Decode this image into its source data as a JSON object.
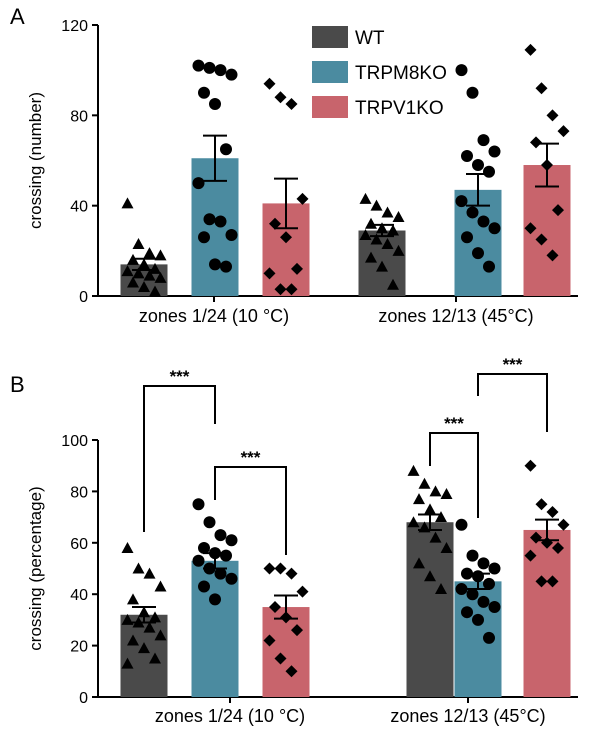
{
  "figure": {
    "panel_a_label": "A",
    "panel_b_label": "B"
  },
  "legend": [
    {
      "name": "WT",
      "color": "#4a4a4a"
    },
    {
      "name": "TRPM8KO",
      "color": "#4b8ba0"
    },
    {
      "name": "TRPV1KO",
      "color": "#c8646c"
    }
  ],
  "chart_data": [
    {
      "type": "bar",
      "panel": "A",
      "ylabel": "crossing (number)",
      "ylim": [
        0,
        120
      ],
      "yticks": [
        0,
        40,
        80,
        120
      ],
      "categories": [
        "zones 1/24 (10 °C)",
        "zones 12/13 (45°C)"
      ],
      "error_bars": "mean ± SEM",
      "series": [
        {
          "name": "WT",
          "color": "#4a4a4a",
          "marker": "triangle",
          "values": [
            14,
            29
          ],
          "sem": [
            2.5,
            2.5
          ],
          "points": [
            [
              41,
              23,
              19,
              18,
              16,
              14,
              12,
              11,
              10,
              9,
              8,
              6,
              4,
              2
            ],
            [
              43,
              40,
              37,
              35,
              32,
              30,
              29,
              27,
              25,
              23,
              20,
              17,
              13,
              5
            ]
          ]
        },
        {
          "name": "TRPM8KO",
          "color": "#4b8ba0",
          "marker": "circle",
          "values": [
            61,
            47
          ],
          "sem": [
            10,
            7
          ],
          "points": [
            [
              102,
              101,
              100,
              98,
              90,
              85,
              65,
              50,
              34,
              33,
              27,
              26,
              14,
              13
            ],
            [
              100,
              90,
              69,
              64,
              62,
              58,
              55,
              42,
              37,
              33,
              30,
              26,
              19,
              13
            ]
          ]
        },
        {
          "name": "TRPV1KO",
          "color": "#c8646c",
          "marker": "diamond",
          "values": [
            41,
            58
          ],
          "sem": [
            11,
            9.5
          ],
          "points": [
            [
              94,
              88,
              85,
              43,
              32,
              26,
              12,
              10,
              3,
              3
            ],
            [
              109,
              92,
              80,
              73,
              68,
              58,
              38,
              30,
              25,
              18
            ]
          ]
        }
      ]
    },
    {
      "type": "bar",
      "panel": "B",
      "ylabel": "crossing (percentage)",
      "ylim": [
        0,
        100
      ],
      "yticks": [
        0,
        20,
        40,
        60,
        80,
        100
      ],
      "categories": [
        "zones 1/24 (10 °C)",
        "zones 12/13 (45°C)"
      ],
      "error_bars": "mean ± SEM",
      "series": [
        {
          "name": "WT",
          "color": "#4a4a4a",
          "marker": "triangle",
          "values": [
            32,
            68
          ],
          "sem": [
            3,
            3
          ],
          "points": [
            [
              58,
              50,
              48,
              43,
              38,
              33,
              31,
              30,
              29,
              27,
              24,
              22,
              19,
              15,
              13
            ],
            [
              88,
              83,
              80,
              79,
              77,
              73,
              70,
              68,
              66,
              62,
              58,
              52,
              47,
              42
            ]
          ]
        },
        {
          "name": "TRPM8KO",
          "color": "#4b8ba0",
          "marker": "circle",
          "values": [
            53,
            45
          ],
          "sem": [
            3,
            3
          ],
          "points": [
            [
              75,
              68,
              63,
              61,
              58,
              56,
              55,
              53,
              50,
              48,
              46,
              43,
              38
            ],
            [
              67,
              55,
              52,
              50,
              48,
              47,
              44,
              42,
              40,
              37,
              35,
              33,
              30,
              23
            ]
          ]
        },
        {
          "name": "TRPV1KO",
          "color": "#c8646c",
          "marker": "diamond",
          "values": [
            35,
            65
          ],
          "sem": [
            4.5,
            4
          ],
          "points": [
            [
              50,
              50,
              48,
              41,
              35,
              31,
              26,
              22,
              15,
              10
            ],
            [
              90,
              75,
              72,
              67,
              62,
              60,
              58,
              55,
              45,
              45
            ]
          ]
        }
      ],
      "significance": [
        {
          "label": "***",
          "category": 0,
          "from": "WT",
          "to": "TRPM8KO",
          "at": 88
        },
        {
          "label": "***",
          "category": 0,
          "from": "TRPM8KO",
          "to": "TRPV1KO",
          "at": 60
        },
        {
          "label": "***",
          "category": 1,
          "from": "WT",
          "to": "TRPM8KO",
          "at": 83
        },
        {
          "label": "***",
          "category": 1,
          "from": "TRPM8KO",
          "to": "TRPV1KO",
          "at": 95
        }
      ]
    }
  ]
}
